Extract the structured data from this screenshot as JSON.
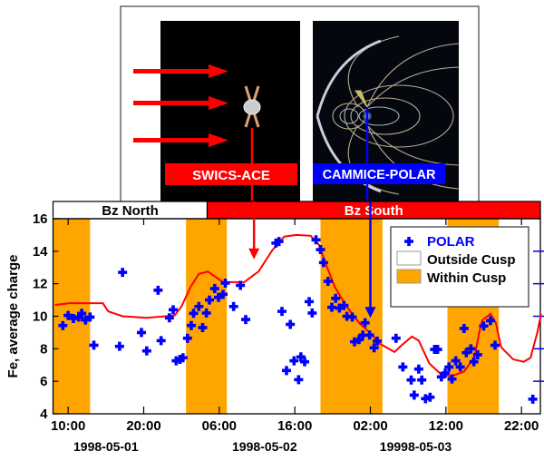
{
  "illustration": {
    "left_label": "SWICS-ACE",
    "right_label": "CAMMICE-POLAR",
    "left_color": "#ff0000",
    "right_color": "#0000ff"
  },
  "chart_data": {
    "type": "scatter",
    "ylabel": "Fe, average charge",
    "ylim": [
      4,
      16
    ],
    "yticks": [
      4,
      6,
      8,
      10,
      12,
      14,
      16
    ],
    "x_units": "hours since 1998-05-01 00:00",
    "xlim": [
      8,
      72.5
    ],
    "xticks": [
      {
        "h": 10,
        "label": "10:00"
      },
      {
        "h": 20,
        "label": "20:00"
      },
      {
        "h": 30,
        "label": "06:00"
      },
      {
        "h": 40,
        "label": "16:00"
      },
      {
        "h": 50,
        "label": "02:00"
      },
      {
        "h": 60,
        "label": "12:00"
      },
      {
        "h": 70,
        "label": "22:00"
      }
    ],
    "date_labels": [
      {
        "h": 15,
        "label": "1998-05-01"
      },
      {
        "h": 36,
        "label": "1998-05-02"
      },
      {
        "h": 56,
        "label": "19998-05-03"
      }
    ],
    "bz": [
      {
        "label": "Bz North",
        "from": 8,
        "to": 28.4,
        "color": "#ffffff",
        "text_color": "#000000"
      },
      {
        "label": "Bz South",
        "from": 28.4,
        "to": 72.5,
        "color": "#ff0000",
        "text_color": "#ffffff"
      }
    ],
    "cusp_intervals": [
      [
        8,
        12.9
      ],
      [
        25.6,
        31.0
      ],
      [
        43.4,
        51.6
      ],
      [
        60.2,
        67.0
      ]
    ],
    "arrows": [
      {
        "h": 34.6,
        "color": "#ff0000",
        "to_value": 13.5
      },
      {
        "h": 50.0,
        "color": "#0000ff",
        "to_value": 9.9
      }
    ],
    "legend": {
      "position": "top-right",
      "items": [
        {
          "label": "POLAR",
          "kind": "marker",
          "color": "#0000ff"
        },
        {
          "label": "Outside Cusp",
          "kind": "swatch",
          "color": "#ffffff"
        },
        {
          "label": "Within Cusp",
          "kind": "swatch",
          "color": "#ffa500"
        }
      ]
    },
    "series": [
      {
        "name": "POLAR",
        "type": "scatter",
        "color": "#0000ff",
        "points": [
          [
            9.3,
            9.43
          ],
          [
            10,
            10.05
          ],
          [
            10.7,
            9.86
          ],
          [
            11.4,
            9.95
          ],
          [
            11.8,
            10.18
          ],
          [
            12.3,
            9.77
          ],
          [
            12.9,
            9.95
          ],
          [
            13.4,
            8.22
          ],
          [
            16.8,
            8.15
          ],
          [
            17.2,
            12.7
          ],
          [
            19.7,
            9.0
          ],
          [
            20.4,
            7.87
          ],
          [
            21.9,
            11.6
          ],
          [
            22.3,
            8.5
          ],
          [
            23.4,
            9.9
          ],
          [
            23.9,
            10.4
          ],
          [
            24.3,
            7.26
          ],
          [
            24.8,
            7.35
          ],
          [
            25.2,
            7.45
          ],
          [
            25.8,
            8.65
          ],
          [
            26.3,
            9.43
          ],
          [
            26.6,
            10.18
          ],
          [
            27.3,
            10.6
          ],
          [
            27.8,
            9.3
          ],
          [
            28.3,
            10.2
          ],
          [
            28.7,
            11.0
          ],
          [
            29.4,
            11.7
          ],
          [
            29.9,
            11.16
          ],
          [
            30.5,
            11.35
          ],
          [
            30.8,
            12.04
          ],
          [
            31.9,
            10.6
          ],
          [
            32.8,
            11.9
          ],
          [
            33.5,
            9.8
          ],
          [
            37.5,
            14.5
          ],
          [
            37.9,
            14.6
          ],
          [
            38.3,
            10.3
          ],
          [
            38.9,
            6.66
          ],
          [
            39.4,
            9.5
          ],
          [
            39.9,
            7.26
          ],
          [
            40.5,
            6.1
          ],
          [
            40.8,
            7.5
          ],
          [
            41.3,
            7.2
          ],
          [
            41.9,
            10.9
          ],
          [
            42.3,
            10.2
          ],
          [
            42.8,
            14.7
          ],
          [
            43.4,
            14.1
          ],
          [
            43.8,
            13.3
          ],
          [
            44.4,
            12.15
          ],
          [
            44.9,
            10.55
          ],
          [
            45.4,
            11.1
          ],
          [
            45.9,
            10.5
          ],
          [
            46.5,
            10.66
          ],
          [
            46.9,
            10.0
          ],
          [
            47.6,
            9.95
          ],
          [
            47.9,
            8.43
          ],
          [
            48.5,
            8.56
          ],
          [
            49.0,
            8.84
          ],
          [
            49.3,
            9.6
          ],
          [
            49.9,
            8.84
          ],
          [
            50.5,
            8.06
          ],
          [
            50.9,
            8.47
          ],
          [
            53.4,
            8.65
          ],
          [
            54.3,
            6.88
          ],
          [
            55.4,
            6.08
          ],
          [
            55.8,
            5.15
          ],
          [
            56.4,
            6.75
          ],
          [
            56.8,
            6.08
          ],
          [
            57.3,
            4.93
          ],
          [
            57.9,
            5.02
          ],
          [
            58.5,
            7.96
          ],
          [
            58.9,
            7.96
          ],
          [
            59.4,
            6.27
          ],
          [
            59.9,
            6.5
          ],
          [
            60.4,
            6.88
          ],
          [
            60.8,
            6.14
          ],
          [
            61.3,
            7.26
          ],
          [
            61.9,
            6.88
          ],
          [
            62.4,
            9.25
          ],
          [
            62.7,
            7.76
          ],
          [
            63.3,
            8.0
          ],
          [
            63.7,
            7.2
          ],
          [
            64.2,
            7.63
          ],
          [
            65.0,
            9.4
          ],
          [
            65.9,
            9.73
          ],
          [
            66.5,
            8.22
          ],
          [
            71.5,
            4.9
          ]
        ]
      },
      {
        "name": "ACE (mapped)",
        "type": "line",
        "color": "#ff0000",
        "points": [
          [
            8.25,
            10.7
          ],
          [
            10.2,
            10.8
          ],
          [
            14.6,
            10.8
          ],
          [
            15.3,
            10.3
          ],
          [
            17.2,
            10.0
          ],
          [
            20.4,
            9.9
          ],
          [
            24.1,
            10.05
          ],
          [
            25.0,
            10.6
          ],
          [
            26.2,
            11.8
          ],
          [
            27.3,
            12.6
          ],
          [
            28.5,
            12.75
          ],
          [
            29.4,
            12.45
          ],
          [
            30.5,
            12.1
          ],
          [
            33.3,
            12.1
          ],
          [
            35.2,
            12.75
          ],
          [
            37.0,
            14.05
          ],
          [
            38.6,
            14.9
          ],
          [
            40.2,
            15.0
          ],
          [
            42.1,
            14.95
          ],
          [
            43.2,
            14.4
          ],
          [
            44.2,
            13.1
          ],
          [
            45.3,
            11.8
          ],
          [
            46.7,
            10.7
          ],
          [
            48.5,
            9.6
          ],
          [
            49.9,
            9.0
          ],
          [
            51.3,
            8.3
          ],
          [
            53.2,
            7.8
          ],
          [
            54.1,
            8.2
          ],
          [
            55.5,
            8.75
          ],
          [
            56.4,
            8.5
          ],
          [
            57.8,
            7.1
          ],
          [
            59.2,
            6.5
          ],
          [
            60.6,
            6.3
          ],
          [
            62.4,
            6.6
          ],
          [
            63.8,
            7.5
          ],
          [
            64.4,
            9.0
          ],
          [
            64.8,
            9.75
          ],
          [
            65.9,
            10.15
          ],
          [
            66.6,
            9.6
          ],
          [
            67.3,
            8.1
          ],
          [
            68.9,
            7.35
          ],
          [
            70.3,
            7.2
          ],
          [
            71.2,
            7.45
          ],
          [
            72.1,
            9.0
          ],
          [
            72.6,
            10.15
          ]
        ]
      }
    ]
  }
}
